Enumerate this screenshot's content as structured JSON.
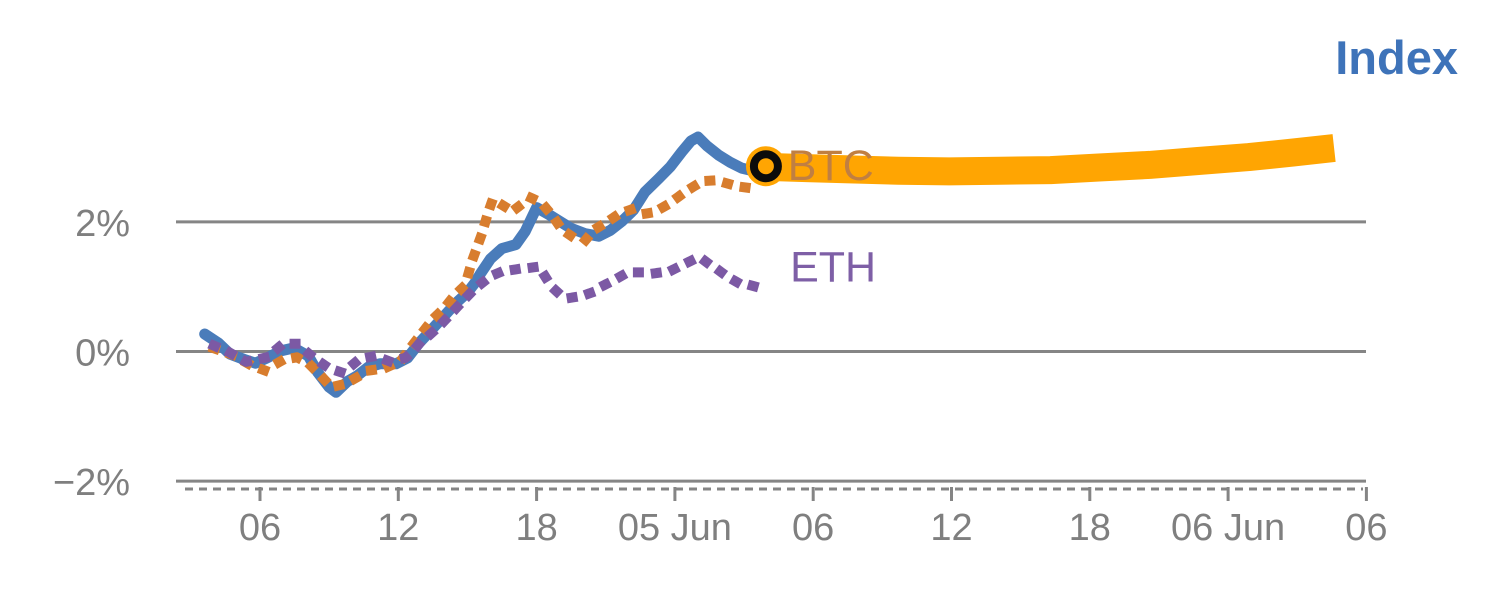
{
  "title": {
    "text": "Index",
    "color": "#3e73b9"
  },
  "colors": {
    "background": "#ffffff",
    "grid": "#858585",
    "axis_text": "#7f7f7f",
    "index_line": "#4a7cba",
    "btc_dotted": "#d87d2e",
    "eth_dotted": "#7c59a4",
    "forecast_band": "#ffa502",
    "marker_fill": "#ffa502",
    "marker_ring": "#0b0b0b"
  },
  "chart_data": {
    "type": "line",
    "title": "Index",
    "xlabel": "",
    "ylabel": "",
    "grid": true,
    "legend_position": "inline-end-of-line-labels",
    "x_unit": "hours from first 06:00 tick (span Jun 4 - Jun 6)",
    "x_range": [
      -3,
      49
    ],
    "y_unit": "percent change",
    "y_range": [
      -2.6,
      3.9
    ],
    "x_axis": {
      "dashed_baseline": true,
      "ticks": [
        {
          "t": 0,
          "label": "06"
        },
        {
          "t": 6,
          "label": "12"
        },
        {
          "t": 12,
          "label": "18"
        },
        {
          "t": 18,
          "label": "05 Jun"
        },
        {
          "t": 24,
          "label": "06"
        },
        {
          "t": 30,
          "label": "12"
        },
        {
          "t": 36,
          "label": "18"
        },
        {
          "t": 42,
          "label": "06 Jun"
        },
        {
          "t": 48,
          "label": "06"
        }
      ]
    },
    "y_axis": {
      "ticks": [
        {
          "value": 2,
          "label": "2%"
        },
        {
          "value": 0,
          "label": "0%"
        },
        {
          "value": -2,
          "label": "−2%"
        }
      ]
    },
    "series": [
      {
        "name": "Index forecast band",
        "style": "band",
        "color": "#ffa502",
        "points": [
          [
            21.8,
            2.85
          ],
          [
            23.7,
            2.83
          ],
          [
            25.6,
            2.81
          ],
          [
            27.7,
            2.79
          ],
          [
            29.9,
            2.78
          ],
          [
            32.1,
            2.79
          ],
          [
            34.3,
            2.8
          ],
          [
            36.4,
            2.84
          ],
          [
            38.6,
            2.88
          ],
          [
            40.7,
            2.94
          ],
          [
            42.9,
            3.0
          ],
          [
            44.8,
            3.07
          ],
          [
            46.6,
            3.14
          ]
        ]
      },
      {
        "name": "Index",
        "style": "solid",
        "color": "#4a7cba",
        "points": [
          [
            -2.4,
            0.27
          ],
          [
            -1.8,
            0.13
          ],
          [
            -1.3,
            -0.04
          ],
          [
            -0.7,
            -0.12
          ],
          [
            -0.2,
            -0.18
          ],
          [
            0.3,
            -0.1
          ],
          [
            0.9,
            0.01
          ],
          [
            1.4,
            0.05
          ],
          [
            1.7,
            0.01
          ],
          [
            2.1,
            -0.07
          ],
          [
            2.5,
            -0.32
          ],
          [
            3.0,
            -0.55
          ],
          [
            3.3,
            -0.63
          ],
          [
            3.8,
            -0.46
          ],
          [
            4.2,
            -0.38
          ],
          [
            4.7,
            -0.24
          ],
          [
            5.2,
            -0.19
          ],
          [
            5.9,
            -0.19
          ],
          [
            6.4,
            -0.1
          ],
          [
            6.9,
            0.13
          ],
          [
            7.5,
            0.36
          ],
          [
            8.2,
            0.63
          ],
          [
            8.6,
            0.78
          ],
          [
            9.0,
            0.91
          ],
          [
            9.3,
            1.05
          ],
          [
            9.6,
            1.22
          ],
          [
            10.0,
            1.43
          ],
          [
            10.5,
            1.59
          ],
          [
            11.1,
            1.65
          ],
          [
            11.5,
            1.85
          ],
          [
            12.0,
            2.22
          ],
          [
            12.5,
            2.12
          ],
          [
            13.0,
            2.01
          ],
          [
            13.5,
            1.9
          ],
          [
            14.1,
            1.82
          ],
          [
            14.7,
            1.78
          ],
          [
            15.2,
            1.87
          ],
          [
            15.7,
            2.01
          ],
          [
            16.2,
            2.18
          ],
          [
            16.7,
            2.46
          ],
          [
            17.3,
            2.67
          ],
          [
            17.8,
            2.85
          ],
          [
            18.3,
            3.08
          ],
          [
            18.7,
            3.25
          ],
          [
            19.0,
            3.31
          ],
          [
            19.4,
            3.17
          ],
          [
            19.9,
            3.03
          ],
          [
            20.4,
            2.92
          ],
          [
            20.9,
            2.83
          ],
          [
            21.5,
            2.78
          ],
          [
            21.95,
            2.86
          ]
        ]
      },
      {
        "name": "BTC",
        "style": "dotted",
        "color": "#d87d2e",
        "label": {
          "text": "BTC",
          "color": "#c07f42",
          "t": 22.9,
          "value": 2.88
        },
        "points": [
          [
            -2.0,
            0.05
          ],
          [
            -1.2,
            -0.05
          ],
          [
            -0.4,
            -0.21
          ],
          [
            0.2,
            -0.29
          ],
          [
            1.0,
            -0.13
          ],
          [
            1.6,
            -0.09
          ],
          [
            2.1,
            -0.18
          ],
          [
            2.6,
            -0.36
          ],
          [
            3.1,
            -0.55
          ],
          [
            3.7,
            -0.5
          ],
          [
            4.2,
            -0.4
          ],
          [
            4.8,
            -0.29
          ],
          [
            5.4,
            -0.26
          ],
          [
            6.1,
            -0.15
          ],
          [
            6.6,
            0.09
          ],
          [
            7.1,
            0.32
          ],
          [
            7.5,
            0.5
          ],
          [
            8.0,
            0.67
          ],
          [
            8.4,
            0.85
          ],
          [
            8.9,
            1.02
          ],
          [
            9.2,
            1.4
          ],
          [
            9.6,
            1.79
          ],
          [
            9.9,
            2.15
          ],
          [
            10.1,
            2.35
          ],
          [
            10.6,
            2.24
          ],
          [
            10.9,
            2.15
          ],
          [
            11.3,
            2.26
          ],
          [
            11.7,
            2.38
          ],
          [
            12.2,
            2.3
          ],
          [
            12.7,
            2.09
          ],
          [
            13.1,
            1.88
          ],
          [
            13.6,
            1.76
          ],
          [
            14.1,
            1.71
          ],
          [
            14.5,
            1.88
          ],
          [
            15.1,
            2.01
          ],
          [
            15.6,
            2.13
          ],
          [
            16.1,
            2.19
          ],
          [
            16.6,
            2.12
          ],
          [
            17.1,
            2.15
          ],
          [
            17.7,
            2.27
          ],
          [
            18.2,
            2.4
          ],
          [
            18.7,
            2.52
          ],
          [
            19.2,
            2.63
          ],
          [
            19.7,
            2.64
          ],
          [
            20.2,
            2.6
          ],
          [
            20.7,
            2.55
          ],
          [
            21.3,
            2.52
          ],
          [
            21.7,
            2.5
          ]
        ]
      },
      {
        "name": "ETH",
        "style": "dotted",
        "color": "#7c59a4",
        "label": {
          "text": "ETH",
          "color": "#7e5fa6",
          "t": 23.0,
          "value": 1.31
        },
        "points": [
          [
            -2.0,
            0.09
          ],
          [
            -1.3,
            -0.02
          ],
          [
            -0.6,
            -0.16
          ],
          [
            0.3,
            -0.09
          ],
          [
            1.0,
            0.12
          ],
          [
            1.6,
            0.12
          ],
          [
            2.3,
            -0.09
          ],
          [
            3.0,
            -0.26
          ],
          [
            3.6,
            -0.33
          ],
          [
            4.3,
            -0.12
          ],
          [
            5.0,
            -0.07
          ],
          [
            5.6,
            -0.15
          ],
          [
            6.3,
            -0.1
          ],
          [
            6.6,
            -0.01
          ],
          [
            7.0,
            0.16
          ],
          [
            7.4,
            0.27
          ],
          [
            7.8,
            0.4
          ],
          [
            8.2,
            0.55
          ],
          [
            8.7,
            0.74
          ],
          [
            9.1,
            0.89
          ],
          [
            9.5,
            1.02
          ],
          [
            10.0,
            1.16
          ],
          [
            10.4,
            1.22
          ],
          [
            10.8,
            1.25
          ],
          [
            11.3,
            1.28
          ],
          [
            11.7,
            1.29
          ],
          [
            12.1,
            1.31
          ],
          [
            12.4,
            1.14
          ],
          [
            12.8,
            0.95
          ],
          [
            13.1,
            0.85
          ],
          [
            13.5,
            0.83
          ],
          [
            14.0,
            0.86
          ],
          [
            14.4,
            0.91
          ],
          [
            14.8,
            1.0
          ],
          [
            15.3,
            1.09
          ],
          [
            15.7,
            1.17
          ],
          [
            16.1,
            1.22
          ],
          [
            16.6,
            1.22
          ],
          [
            17.0,
            1.2
          ],
          [
            17.4,
            1.22
          ],
          [
            17.9,
            1.26
          ],
          [
            18.3,
            1.33
          ],
          [
            18.7,
            1.4
          ],
          [
            19.1,
            1.45
          ],
          [
            19.4,
            1.37
          ],
          [
            19.8,
            1.28
          ],
          [
            20.1,
            1.2
          ],
          [
            20.5,
            1.11
          ],
          [
            20.8,
            1.05
          ],
          [
            21.3,
            1.02
          ],
          [
            21.7,
            0.98
          ]
        ]
      }
    ],
    "marker": {
      "series": "Index",
      "t": 21.95,
      "value": 2.86
    }
  }
}
